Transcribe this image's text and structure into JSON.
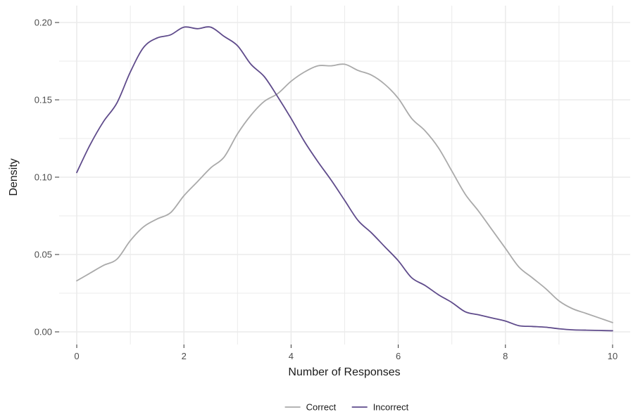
{
  "chart_data": {
    "type": "line",
    "title": "",
    "xlabel": "Number of Responses",
    "ylabel": "Density",
    "xlim": [
      0,
      10
    ],
    "ylim": [
      0,
      0.2
    ],
    "x_ticks": [
      0,
      2,
      4,
      6,
      8,
      10
    ],
    "x_tick_labels": [
      "0",
      "2",
      "4",
      "6",
      "8",
      "10"
    ],
    "y_ticks": [
      0,
      0.05,
      0.1,
      0.15,
      0.2
    ],
    "y_tick_labels": [
      "0.00",
      "0.05",
      "0.10",
      "0.15",
      "0.20"
    ],
    "grid": true,
    "legend_position": "bottom",
    "colors": {
      "correct": "#aaaaaa",
      "incorrect": "#5f4b8b",
      "grid": "#ebebeb",
      "axis_text": "#4d4d4d"
    },
    "series": [
      {
        "name": "Correct",
        "color": "#aaaaaa",
        "x": [
          0,
          0.25,
          0.5,
          0.75,
          1.0,
          1.25,
          1.5,
          1.75,
          2.0,
          2.25,
          2.5,
          2.75,
          3.0,
          3.25,
          3.5,
          3.75,
          4.0,
          4.25,
          4.5,
          4.75,
          5.0,
          5.25,
          5.5,
          5.75,
          6.0,
          6.25,
          6.5,
          6.75,
          7.0,
          7.25,
          7.5,
          7.75,
          8.0,
          8.25,
          8.5,
          8.75,
          9.0,
          9.25,
          9.5,
          9.75,
          10.0
        ],
        "y": [
          0.033,
          0.038,
          0.043,
          0.047,
          0.059,
          0.068,
          0.073,
          0.077,
          0.088,
          0.097,
          0.106,
          0.113,
          0.128,
          0.14,
          0.149,
          0.154,
          0.162,
          0.168,
          0.172,
          0.172,
          0.173,
          0.169,
          0.166,
          0.16,
          0.151,
          0.138,
          0.13,
          0.119,
          0.104,
          0.089,
          0.078,
          0.066,
          0.054,
          0.042,
          0.035,
          0.028,
          0.02,
          0.015,
          0.012,
          0.009,
          0.006
        ]
      },
      {
        "name": "Incorrect",
        "color": "#5f4b8b",
        "x": [
          0,
          0.25,
          0.5,
          0.75,
          1.0,
          1.25,
          1.5,
          1.75,
          2.0,
          2.25,
          2.5,
          2.75,
          3.0,
          3.25,
          3.5,
          3.75,
          4.0,
          4.25,
          4.5,
          4.75,
          5.0,
          5.25,
          5.5,
          5.75,
          6.0,
          6.25,
          6.5,
          6.75,
          7.0,
          7.25,
          7.5,
          7.75,
          8.0,
          8.25,
          8.5,
          8.75,
          9.0,
          9.25,
          9.5,
          9.75,
          10.0
        ],
        "y": [
          0.103,
          0.121,
          0.136,
          0.148,
          0.168,
          0.184,
          0.19,
          0.192,
          0.197,
          0.196,
          0.197,
          0.191,
          0.185,
          0.173,
          0.165,
          0.152,
          0.138,
          0.123,
          0.11,
          0.098,
          0.085,
          0.072,
          0.064,
          0.055,
          0.046,
          0.035,
          0.03,
          0.024,
          0.019,
          0.013,
          0.011,
          0.009,
          0.007,
          0.004,
          0.0035,
          0.003,
          0.002,
          0.0013,
          0.0011,
          0.0009,
          0.0007
        ]
      }
    ]
  }
}
